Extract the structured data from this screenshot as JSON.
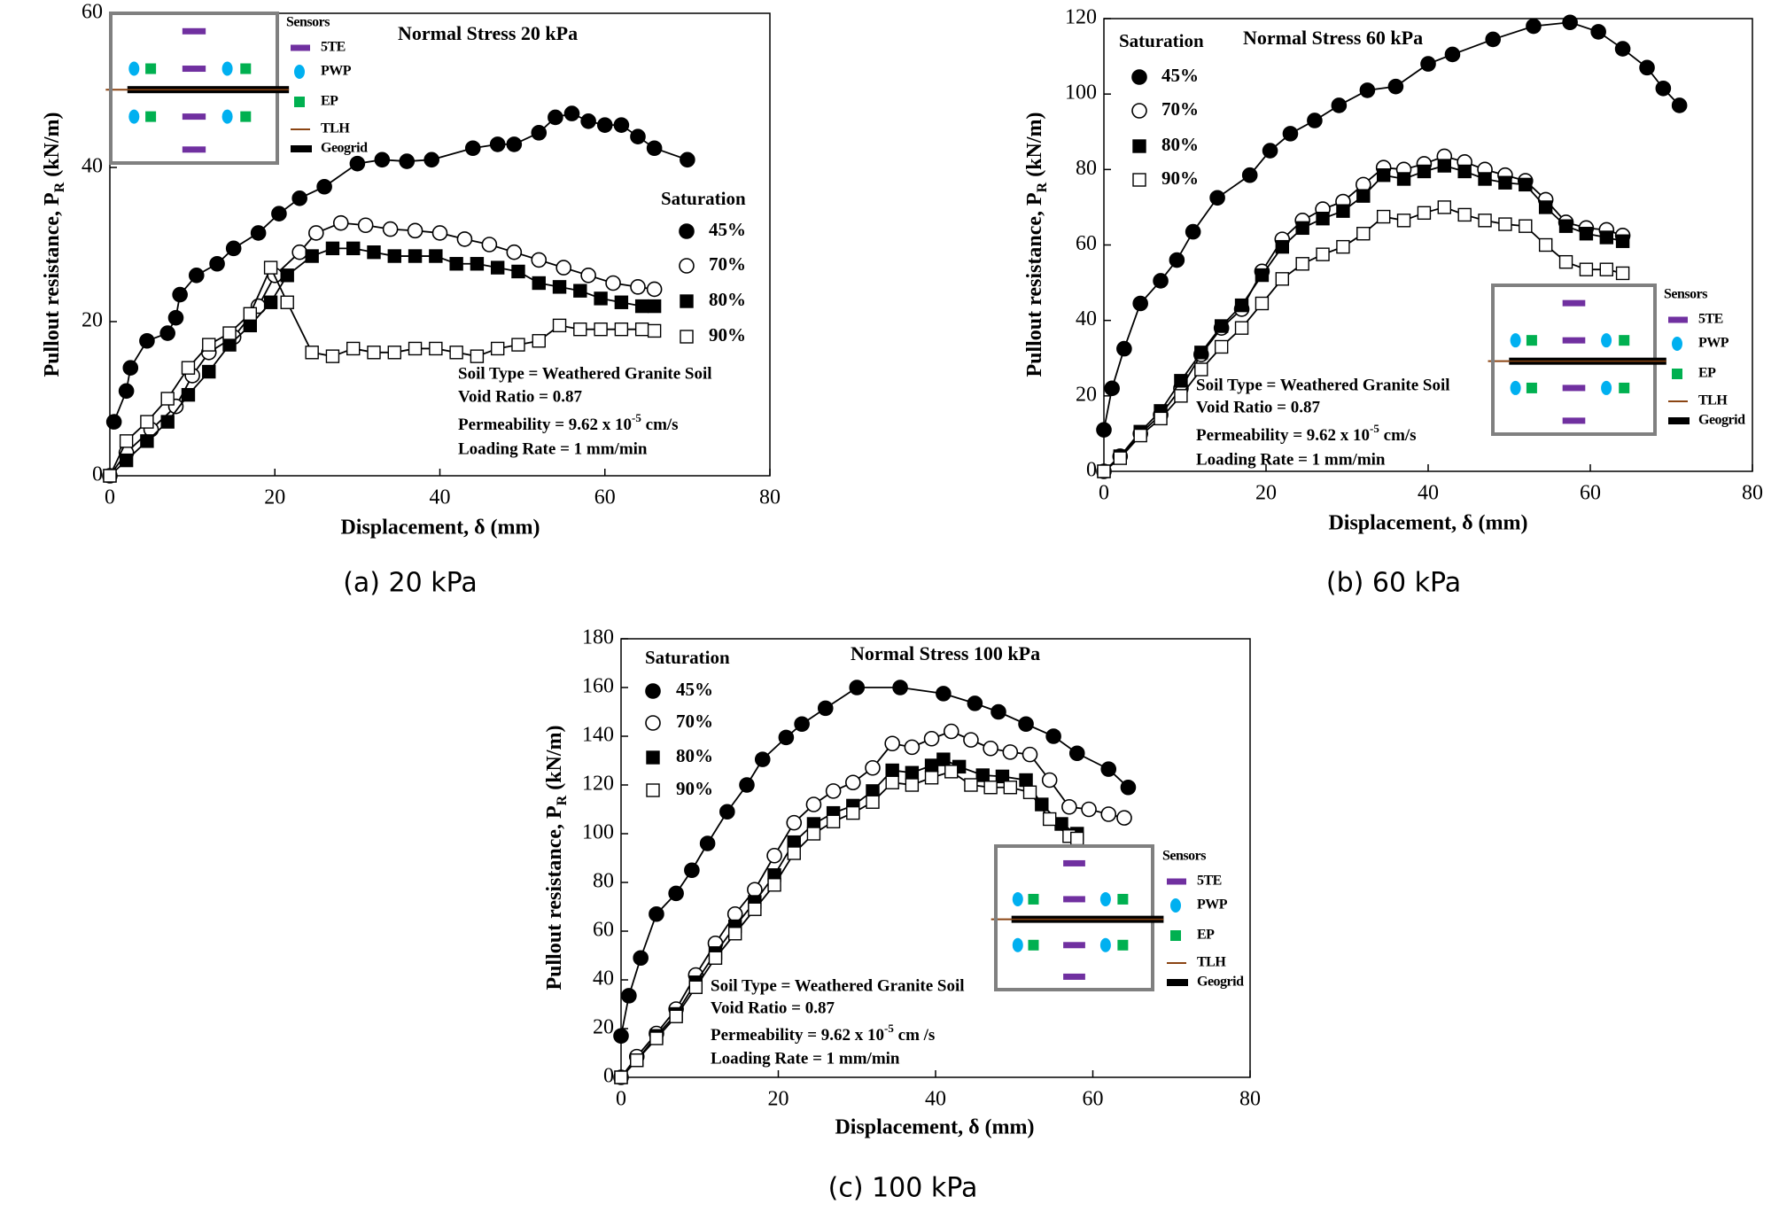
{
  "chart_data": [
    {
      "type": "line",
      "title": "Normal Stress 20 kPa",
      "caption": "(a) 20 kPa",
      "xlabel": "Displacement, δ (mm)",
      "ylabel": [
        "Pullout resistance, P",
        "R",
        " (kN/m)"
      ],
      "xlim": [
        0,
        80
      ],
      "ylim": [
        0,
        60
      ],
      "xticks": [
        0,
        20,
        40,
        60,
        80
      ],
      "yticks": [
        0,
        20,
        40,
        60
      ],
      "legend_title": "Saturation",
      "series": [
        {
          "name": "45%",
          "color": "#000000",
          "marker": "circle",
          "filled": true,
          "x": [
            0.5,
            2,
            2.5,
            4.5,
            7,
            8,
            8.5,
            10.5,
            13,
            15,
            18,
            20.5,
            23,
            26,
            30,
            33,
            36,
            39,
            44,
            47,
            49,
            52,
            54,
            56,
            58,
            60,
            62,
            64,
            66,
            70
          ],
          "values": [
            7,
            11,
            14,
            17.5,
            18.5,
            20.5,
            23.5,
            26,
            27.5,
            29.5,
            31.5,
            34,
            36,
            37.5,
            40.5,
            41,
            40.8,
            41,
            42.5,
            43,
            43,
            44.5,
            46.5,
            47,
            46,
            45.5,
            45.5,
            44,
            42.5,
            41
          ]
        },
        {
          "name": "70%",
          "color": "#000000",
          "marker": "circle",
          "filled": false,
          "x": [
            0,
            2,
            5,
            8,
            10,
            12,
            15,
            18,
            20,
            23,
            25,
            28,
            31,
            34,
            37,
            40,
            43,
            46,
            49,
            52,
            55,
            58,
            61,
            64,
            66
          ],
          "values": [
            0,
            3,
            6,
            9,
            13,
            16,
            18,
            22,
            26,
            29,
            31.5,
            32.8,
            32.5,
            32,
            31.8,
            31.5,
            30.7,
            30,
            29,
            28,
            27,
            26,
            25,
            24.5,
            24.2
          ]
        },
        {
          "name": "80%",
          "color": "#000000",
          "marker": "square",
          "filled": true,
          "x": [
            0,
            2,
            4.5,
            7,
            9.5,
            12,
            14.5,
            17,
            19.5,
            21.5,
            24.5,
            27,
            29.5,
            32,
            34.5,
            37,
            39.5,
            42,
            44.5,
            47,
            49.5,
            52,
            54.5,
            57,
            59.5,
            62,
            64.5,
            66
          ],
          "values": [
            0,
            2,
            4.5,
            7,
            10.5,
            13.5,
            17,
            19.5,
            22.5,
            26,
            28.5,
            29.5,
            29.5,
            29,
            28.5,
            28.5,
            28.5,
            27.5,
            27.5,
            27,
            26.5,
            25,
            24.5,
            24,
            23,
            22.5,
            22,
            22
          ]
        },
        {
          "name": "90%",
          "color": "#000000",
          "marker": "square",
          "filled": false,
          "x": [
            0,
            2,
            4.5,
            7,
            9.5,
            12,
            14.5,
            17,
            19.5,
            21.5,
            24.5,
            27,
            29.5,
            32,
            34.5,
            37,
            39.5,
            42,
            44.5,
            47,
            49.5,
            52,
            54.5,
            57,
            59.5,
            62,
            64.5,
            66
          ],
          "values": [
            0,
            4.5,
            7,
            10,
            14,
            17,
            18.5,
            21,
            27,
            22.5,
            16,
            15.5,
            16.5,
            16,
            16,
            16.5,
            16.5,
            16,
            15.5,
            16.5,
            17,
            17.5,
            19.5,
            19,
            19,
            19,
            19,
            18.8
          ]
        }
      ],
      "annotations": [
        "Soil Type = Weathered Granite Soil",
        "Void Ratio = 0.87",
        [
          "Permeability = 9.62 x 10",
          "-5",
          " cm/s"
        ],
        "Loading Rate = 1 mm/min"
      ],
      "sensors": {
        "title": "Sensors",
        "items": [
          "5TE",
          "PWP",
          "EP",
          "TLH",
          "Geogrid"
        ]
      }
    },
    {
      "type": "line",
      "title": "Normal Stress 60 kPa",
      "caption": "(b) 60 kPa",
      "xlabel": "Displacement, δ (mm)",
      "ylabel": [
        "Pullout resistance, P",
        "R",
        " (kN/m)"
      ],
      "xlim": [
        0,
        80
      ],
      "ylim": [
        0,
        120
      ],
      "xticks": [
        0,
        20,
        40,
        60,
        80
      ],
      "yticks": [
        0,
        20,
        40,
        60,
        80,
        100,
        120
      ],
      "legend_title": "Saturation",
      "series": [
        {
          "name": "45%",
          "color": "#000000",
          "marker": "circle",
          "filled": true,
          "x": [
            0,
            1,
            2.5,
            4.5,
            7,
            9,
            11,
            14,
            18,
            20.5,
            23,
            26,
            29,
            32.5,
            36,
            40,
            43,
            48,
            53,
            57.5,
            61,
            64,
            67,
            69,
            71
          ],
          "values": [
            11,
            22,
            32.5,
            44.5,
            50.5,
            56,
            63.5,
            72.5,
            78.5,
            85,
            89.5,
            93,
            97,
            101,
            102,
            108,
            110.5,
            114.5,
            118,
            119,
            116.5,
            112,
            107,
            101.5,
            97
          ]
        },
        {
          "name": "70%",
          "color": "#000000",
          "marker": "circle",
          "filled": false,
          "x": [
            0,
            2,
            4.5,
            7,
            9.5,
            12,
            14.5,
            17,
            19.5,
            22,
            24.5,
            27,
            29.5,
            32,
            34.5,
            37,
            39.5,
            42,
            44.5,
            47,
            49.5,
            52,
            54.5,
            57,
            59.5,
            62,
            64
          ],
          "values": [
            0,
            4,
            10,
            15,
            22,
            31,
            38,
            43,
            53,
            61.5,
            66.5,
            69.5,
            71.5,
            76,
            80.5,
            80,
            81.5,
            83.5,
            82,
            80,
            78.5,
            77,
            72,
            66,
            64.5,
            64,
            62.5
          ]
        },
        {
          "name": "80%",
          "color": "#000000",
          "marker": "square",
          "filled": true,
          "x": [
            0,
            2,
            4.5,
            7,
            9.5,
            12,
            14.5,
            17,
            19.5,
            22,
            24.5,
            27,
            29.5,
            32,
            34.5,
            37,
            39.5,
            42,
            44.5,
            47,
            49.5,
            52,
            54.5,
            57,
            59.5,
            62,
            64
          ],
          "values": [
            0,
            4,
            10.5,
            16,
            24,
            31.5,
            38.5,
            44,
            52,
            59.5,
            64.5,
            67,
            69,
            73,
            78.5,
            77.5,
            79.5,
            81,
            79.5,
            77.5,
            76.5,
            76,
            70,
            65,
            63,
            62,
            61
          ]
        },
        {
          "name": "90%",
          "color": "#000000",
          "marker": "square",
          "filled": false,
          "x": [
            0,
            2,
            4.5,
            7,
            9.5,
            12,
            14.5,
            17,
            19.5,
            22,
            24.5,
            27,
            29.5,
            32,
            34.5,
            37,
            39.5,
            42,
            44.5,
            47,
            49.5,
            52,
            54.5,
            57,
            59.5,
            62,
            64
          ],
          "values": [
            0,
            3.5,
            9.5,
            14,
            20,
            27,
            33,
            38,
            44.5,
            51,
            55,
            57.5,
            59.5,
            63,
            67.5,
            66.5,
            68.5,
            70,
            68,
            66.5,
            65.5,
            65,
            60,
            55.5,
            53.5,
            53.5,
            52.5
          ]
        }
      ],
      "annotations": [
        "Soil Type = Weathered Granite Soil",
        "Void Ratio = 0.87",
        [
          "Permeability = 9.62 x 10",
          "-5",
          " cm/s"
        ],
        "Loading Rate = 1 mm/min"
      ],
      "sensors": {
        "title": "Sensors",
        "items": [
          "5TE",
          "PWP",
          "EP",
          "TLH",
          "Geogrid"
        ]
      }
    },
    {
      "type": "line",
      "title": "Normal Stress 100 kPa",
      "caption": "(c) 100 kPa",
      "xlabel": "Displacement, δ (mm)",
      "ylabel": [
        "Pullout resistance, P",
        "R",
        " (kN/m)"
      ],
      "xlim": [
        0,
        80
      ],
      "ylim": [
        0,
        180
      ],
      "xticks": [
        0,
        20,
        40,
        60,
        80
      ],
      "yticks": [
        0,
        20,
        40,
        60,
        80,
        100,
        120,
        140,
        160,
        180
      ],
      "legend_title": "Saturation",
      "series": [
        {
          "name": "45%",
          "color": "#000000",
          "marker": "circle",
          "filled": true,
          "x": [
            0,
            1,
            2.5,
            4.5,
            7,
            9,
            11,
            13.5,
            16,
            18,
            21,
            23,
            26,
            30,
            35.5,
            41,
            45,
            48,
            51.5,
            55,
            58,
            62,
            64.5
          ],
          "values": [
            17,
            33.5,
            49,
            67,
            75.5,
            85,
            96,
            109,
            120,
            130.5,
            139.5,
            145,
            151.5,
            160,
            160,
            157.5,
            153.5,
            150,
            145,
            140,
            133,
            126.5,
            119
          ]
        },
        {
          "name": "70%",
          "color": "#000000",
          "marker": "circle",
          "filled": false,
          "x": [
            0,
            2,
            4.5,
            7,
            9.5,
            12,
            14.5,
            17,
            19.5,
            22,
            24.5,
            27,
            29.5,
            32,
            34.5,
            37,
            39.5,
            42,
            44.5,
            47,
            49.5,
            52,
            54.5,
            57,
            59.5,
            62,
            64
          ],
          "values": [
            0,
            8.5,
            18,
            28,
            42,
            55,
            67,
            77,
            91,
            104.5,
            112,
            117.5,
            121,
            127,
            137,
            135.5,
            139,
            142,
            138.5,
            135,
            133.5,
            132.5,
            122,
            111,
            110,
            108,
            106.5
          ]
        },
        {
          "name": "80%",
          "color": "#000000",
          "marker": "square",
          "filled": true,
          "x": [
            0,
            2,
            4.5,
            7,
            9.5,
            12,
            14.5,
            17,
            19.5,
            22,
            24.5,
            27,
            29.5,
            32,
            34.5,
            37,
            39.5,
            41,
            43,
            46,
            48.5,
            51.5,
            53.5,
            56,
            58
          ],
          "values": [
            0,
            7,
            17,
            26,
            39,
            51,
            62,
            72,
            83,
            96.5,
            104,
            108.5,
            111.5,
            117.5,
            126,
            125,
            128,
            130.5,
            127.5,
            124,
            123.5,
            122,
            112,
            104,
            100
          ]
        },
        {
          "name": "90%",
          "color": "#000000",
          "marker": "square",
          "filled": false,
          "x": [
            0,
            2,
            4.5,
            7,
            9.5,
            12,
            14.5,
            17,
            19.5,
            22,
            24.5,
            27,
            29.5,
            32,
            34.5,
            37,
            39.5,
            42,
            44.5,
            47,
            49.5,
            52,
            54.5,
            57,
            58
          ],
          "values": [
            0,
            7,
            16,
            25,
            37,
            49,
            59,
            69,
            79,
            92,
            100,
            105,
            108.5,
            113,
            121,
            120,
            123,
            125.5,
            120,
            119,
            119,
            117,
            106,
            99,
            98
          ]
        }
      ],
      "annotations": [
        "Soil Type = Weathered Granite Soil",
        "Void Ratio = 0.87",
        [
          "Permeability = 9.62 x 10",
          "-5",
          " cm /s"
        ],
        "Loading Rate = 1 mm/min"
      ],
      "sensors": {
        "title": "Sensors",
        "items": [
          "5TE",
          "PWP",
          "EP",
          "TLH",
          "Geogrid"
        ]
      }
    }
  ]
}
